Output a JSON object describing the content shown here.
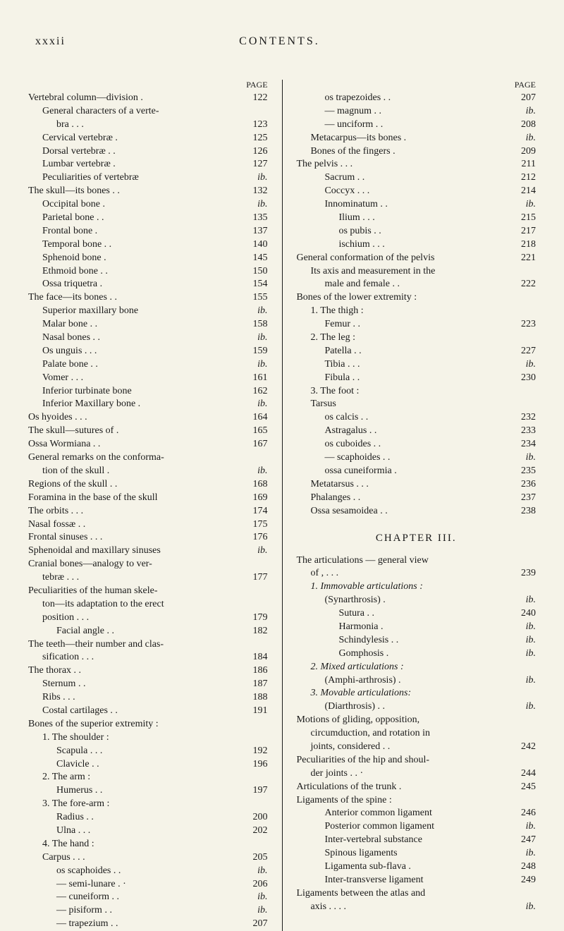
{
  "header": {
    "pageNum": "xxxii",
    "title": "CONTENTS."
  },
  "pageLabel": "PAGE",
  "chapterHeading": "CHAPTER III.",
  "leftCol": [
    {
      "t": "Vertebral column—division",
      "p": "122",
      "i": 0,
      "dot": "."
    },
    {
      "t": "General characters of a verte-",
      "p": "",
      "i": 1
    },
    {
      "t": "bra",
      "p": "123",
      "i": 2,
      "dot": ".   .   ."
    },
    {
      "t": "Cervical vertebræ",
      "p": "125",
      "i": 1,
      "dot": "."
    },
    {
      "t": "Dorsal vertebræ",
      "p": "126",
      "i": 1,
      "dot": ".   ."
    },
    {
      "t": "Lumbar vertebræ",
      "p": "127",
      "i": 1,
      "dot": "."
    },
    {
      "t": "Peculiarities of vertebræ",
      "p": "ib.",
      "i": 1
    },
    {
      "t": "The skull—its bones",
      "p": "132",
      "i": 0,
      "dot": ".   ."
    },
    {
      "t": "Occipital bone",
      "p": "ib.",
      "i": 1,
      "dot": "."
    },
    {
      "t": "Parietal bone",
      "p": "135",
      "i": 1,
      "dot": ".   ."
    },
    {
      "t": "Frontal bone",
      "p": "137",
      "i": 1,
      "dot": "."
    },
    {
      "t": "Temporal bone",
      "p": "140",
      "i": 1,
      "dot": ".   ."
    },
    {
      "t": "Sphenoid bone",
      "p": "145",
      "i": 1,
      "dot": "."
    },
    {
      "t": "Ethmoid bone",
      "p": "150",
      "i": 1,
      "dot": ".   ."
    },
    {
      "t": "Ossa triquetra",
      "p": "154",
      "i": 1,
      "dot": "."
    },
    {
      "t": "The face—its bones",
      "p": "155",
      "i": 0,
      "dot": ".   ."
    },
    {
      "t": "Superior maxillary bone",
      "p": "ib.",
      "i": 1
    },
    {
      "t": "Malar bone",
      "p": "158",
      "i": 1,
      "dot": ".   ."
    },
    {
      "t": "Nasal bones",
      "p": "ib.",
      "i": 1,
      "dot": ".   ."
    },
    {
      "t": "Os unguis .",
      "p": "159",
      "i": 1,
      "dot": ".   ."
    },
    {
      "t": "Palate bone",
      "p": "ib.",
      "i": 1,
      "dot": ".   ."
    },
    {
      "t": "Vomer",
      "p": "161",
      "i": 1,
      "dot": ".   .   ."
    },
    {
      "t": "Inferior turbinate bone",
      "p": "162",
      "i": 1
    },
    {
      "t": "Inferior Maxillary bone",
      "p": "ib.",
      "i": 1,
      "dot": "."
    },
    {
      "t": "Os hyoides",
      "p": "164",
      "i": 0,
      "dot": ".   .   ."
    },
    {
      "t": "The skull—sutures of",
      "p": "165",
      "i": 0,
      "dot": "."
    },
    {
      "t": "Ossa Wormiana",
      "p": "167",
      "i": 0,
      "dot": ".   ."
    },
    {
      "t": "General remarks on the conforma-",
      "p": "",
      "i": 0
    },
    {
      "t": "tion of the skull",
      "p": "ib.",
      "i": 1,
      "dot": "."
    },
    {
      "t": "Regions of the skull .",
      "p": "168",
      "i": 0,
      "dot": "."
    },
    {
      "t": "Foramina in the base of the skull",
      "p": "169",
      "i": 0
    },
    {
      "t": "The orbits",
      "p": "174",
      "i": 0,
      "dot": ".   .   ."
    },
    {
      "t": "Nasal fossæ",
      "p": "175",
      "i": 0,
      "dot": ".   ."
    },
    {
      "t": "Frontal sinuses .",
      "p": "176",
      "i": 0,
      "dot": ".   ."
    },
    {
      "t": "Sphenoidal and maxillary sinuses",
      "p": "ib.",
      "i": 0
    },
    {
      "t": "Cranial bones—analogy to ver-",
      "p": "",
      "i": 0
    },
    {
      "t": "tebræ",
      "p": "177",
      "i": 1,
      "dot": ".   .   ."
    },
    {
      "t": "Peculiarities of the human skele-",
      "p": "",
      "i": 0
    },
    {
      "t": "ton—its adaptation to the erect",
      "p": "",
      "i": 1
    },
    {
      "t": "position",
      "p": "179",
      "i": 1,
      "dot": ".   .   ."
    },
    {
      "t": "Facial angle",
      "p": "182",
      "i": 2,
      "dot": ".   ."
    },
    {
      "t": "The teeth—their number and clas-",
      "p": "",
      "i": 0
    },
    {
      "t": "sification",
      "p": "184",
      "i": 1,
      "dot": ".   .   ."
    },
    {
      "t": "The thorax",
      "p": "186",
      "i": 0,
      "dot": ".   ."
    },
    {
      "t": "Sternum",
      "p": "187",
      "i": 1,
      "dot": ".   ."
    },
    {
      "t": "Ribs",
      "p": "188",
      "i": 1,
      "dot": ".   .   ."
    },
    {
      "t": "Costal cartilages",
      "p": "191",
      "i": 1,
      "dot": ".   ."
    },
    {
      "t": "Bones of the superior extremity :",
      "p": "",
      "i": 0
    },
    {
      "t": "1. The shoulder :",
      "p": "",
      "i": 1
    },
    {
      "t": "Scapula",
      "p": "192",
      "i": 2,
      "dot": ".   .   ."
    },
    {
      "t": "Clavicle",
      "p": "196",
      "i": 2,
      "dot": ".   ."
    },
    {
      "t": "2. The arm :",
      "p": "",
      "i": 1
    },
    {
      "t": "Humerus",
      "p": "197",
      "i": 2,
      "dot": ".   ."
    },
    {
      "t": "3. The fore-arm :",
      "p": "",
      "i": 1
    },
    {
      "t": "Radius",
      "p": "200",
      "i": 2,
      "dot": ".   ."
    },
    {
      "t": "Ulna",
      "p": "202",
      "i": 2,
      "dot": ".   .   ."
    },
    {
      "t": "4. The hand :",
      "p": "",
      "i": 1
    },
    {
      "t": "Carpus",
      "p": "205",
      "i": 1,
      "dot": ".   .   ."
    },
    {
      "t": "os scaphoides",
      "p": "ib.",
      "i": 2,
      "dot": ".   ."
    },
    {
      "t": "— semi-lunare .",
      "p": "206",
      "i": 2,
      "dot": "·"
    },
    {
      "t": "— cuneiform",
      "p": "ib.",
      "i": 2,
      "dot": ".   ."
    },
    {
      "t": "— pisiform",
      "p": "ib.",
      "i": 2,
      "dot": ".   ."
    },
    {
      "t": "— trapezium",
      "p": "207",
      "i": 2,
      "dot": ".   ."
    }
  ],
  "rightCol": [
    {
      "t": "os trapezoides .",
      "p": "207",
      "i": 2,
      "dot": "."
    },
    {
      "t": "— magnum",
      "p": "ib.",
      "i": 2,
      "dot": ".   ."
    },
    {
      "t": "— unciform",
      "p": "208",
      "i": 2,
      "dot": ".   ."
    },
    {
      "t": "Metacarpus—its bones",
      "p": "ib.",
      "i": 1,
      "dot": "."
    },
    {
      "t": "Bones of the fingers",
      "p": "209",
      "i": 1,
      "dot": "."
    },
    {
      "t": "The pelvis",
      "p": "211",
      "i": 0,
      "dot": ".   .   ."
    },
    {
      "t": "Sacrum",
      "p": "212",
      "i": 2,
      "dot": ".   ."
    },
    {
      "t": "Coccyx",
      "p": "214",
      "i": 2,
      "dot": ".   .   ."
    },
    {
      "t": "Innominatum .",
      "p": "ib.",
      "i": 2,
      "dot": "."
    },
    {
      "t": "Ilium .",
      "p": "215",
      "i": 3,
      "dot": ".   ."
    },
    {
      "t": "os pubis",
      "p": "217",
      "i": 3,
      "dot": ".   ."
    },
    {
      "t": "ischium .",
      "p": "218",
      "i": 3,
      "dot": ".   ."
    },
    {
      "t": "General conformation of the pelvis",
      "p": "221",
      "i": 0
    },
    {
      "t": "Its axis and measurement in the",
      "p": "",
      "i": 1
    },
    {
      "t": "male and female .",
      "p": "222",
      "i": 2,
      "dot": "."
    },
    {
      "t": "Bones of the lower extremity :",
      "p": "",
      "i": 0
    },
    {
      "t": "1. The thigh :",
      "p": "",
      "i": 1
    },
    {
      "t": "Femur",
      "p": "223",
      "i": 2,
      "dot": ".   ."
    },
    {
      "t": "2. The leg :",
      "p": "",
      "i": 1
    },
    {
      "t": "Patella",
      "p": "227",
      "i": 2,
      "dot": ".   ."
    },
    {
      "t": "Tibia",
      "p": "ib.",
      "i": 2,
      "dot": ".   .   ."
    },
    {
      "t": "Fibula",
      "p": "230",
      "i": 2,
      "dot": ".   ."
    },
    {
      "t": "3. The foot :",
      "p": "",
      "i": 1
    },
    {
      "t": "Tarsus",
      "p": "",
      "i": 1
    },
    {
      "t": "os calcis",
      "p": "232",
      "i": 2,
      "dot": ".   ."
    },
    {
      "t": "Astragalus",
      "p": "233",
      "i": 2,
      "dot": ".   ."
    },
    {
      "t": "os cuboides",
      "p": "234",
      "i": 2,
      "dot": ".   ."
    },
    {
      "t": "— scaphoides",
      "p": "ib.",
      "i": 2,
      "dot": ".   ."
    },
    {
      "t": "ossa cuneiformia",
      "p": "235",
      "i": 2,
      "dot": "."
    },
    {
      "t": "Metatarsus .",
      "p": "236",
      "i": 1,
      "dot": ".   ."
    },
    {
      "t": "Phalanges",
      "p": "237",
      "i": 1,
      "dot": ".   ."
    },
    {
      "t": "Ossa sesamoidea",
      "p": "238",
      "i": 1,
      "dot": ".   ."
    }
  ],
  "rightCol2": [
    {
      "t": "The articulations — general view",
      "p": "",
      "i": 0
    },
    {
      "t": "of",
      "p": "239",
      "i": 1,
      "dot": ",   .   .   ."
    },
    {
      "t": "1. Immovable articulations :",
      "p": "",
      "i": 1,
      "italic": true
    },
    {
      "t": "(Synarthrosis)",
      "p": "ib.",
      "i": 2,
      "dot": "."
    },
    {
      "t": "Sutura",
      "p": "240",
      "i": 3,
      "dot": ".   ."
    },
    {
      "t": "Harmonia",
      "p": "ib.",
      "i": 3,
      "dot": "."
    },
    {
      "t": "Schindylesis .",
      "p": "ib.",
      "i": 3,
      "dot": "."
    },
    {
      "t": "Gomphosis",
      "p": "ib.",
      "i": 3,
      "dot": "."
    },
    {
      "t": "2. Mixed articulations :",
      "p": "",
      "i": 1,
      "italic": true
    },
    {
      "t": "(Amphi-arthrosis)",
      "p": "ib.",
      "i": 2,
      "dot": "."
    },
    {
      "t": "3. Movable articulations:",
      "p": "",
      "i": 1,
      "italic": true
    },
    {
      "t": "(Diarthrosis)",
      "p": "ib.",
      "i": 2,
      "dot": ".   ."
    },
    {
      "t": "Motions of gliding, opposition,",
      "p": "",
      "i": 0
    },
    {
      "t": "circumduction, and rotation in",
      "p": "",
      "i": 1
    },
    {
      "t": "joints, considered",
      "p": "242",
      "i": 1,
      "dot": ".   ."
    },
    {
      "t": "Peculiarities of the hip and shoul-",
      "p": "",
      "i": 0
    },
    {
      "t": "der joints",
      "p": "244",
      "i": 1,
      "dot": ".   .   ·"
    },
    {
      "t": "Articulations of the trunk",
      "p": "245",
      "i": 0,
      "dot": "."
    },
    {
      "t": "Ligaments of the spine :",
      "p": "",
      "i": 0
    },
    {
      "t": "Anterior common ligament",
      "p": "246",
      "i": 2
    },
    {
      "t": "Posterior common ligament",
      "p": "ib.",
      "i": 2
    },
    {
      "t": "Inter-vertebral substance",
      "p": "247",
      "i": 2
    },
    {
      "t": "Spinous ligaments",
      "p": "ib.",
      "i": 2
    },
    {
      "t": "Ligamenta sub-flava",
      "p": "248",
      "i": 2,
      "dot": "."
    },
    {
      "t": "Inter-transverse ligament",
      "p": "249",
      "i": 2
    },
    {
      "t": "Ligaments between the atlas and",
      "p": "",
      "i": 0
    },
    {
      "t": "axis",
      "p": "ib.",
      "i": 1,
      "dot": ".   .   .   ."
    }
  ]
}
